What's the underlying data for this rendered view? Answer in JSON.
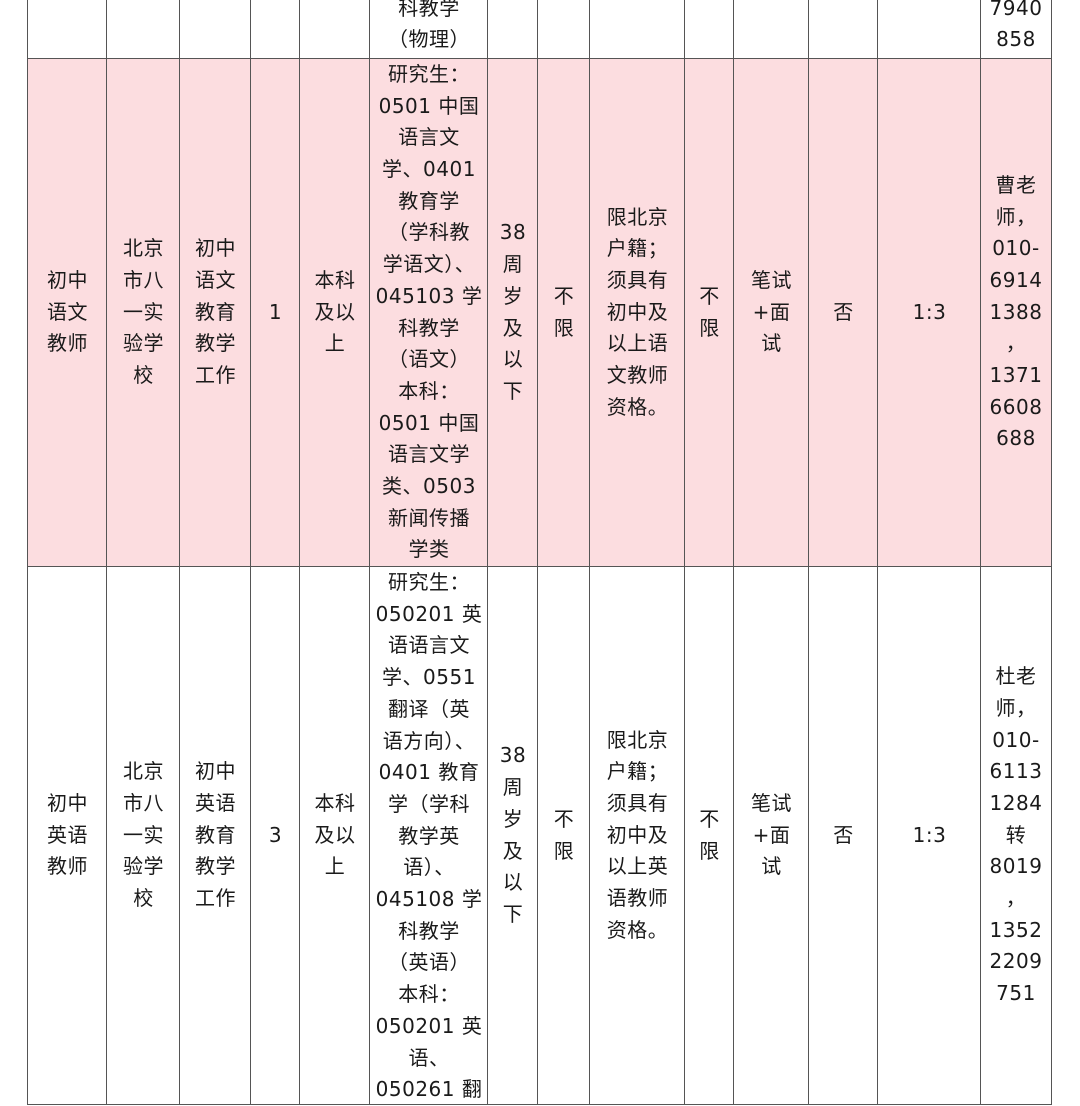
{
  "rows": [
    {
      "highlight": false,
      "cells": [
        "",
        "",
        "",
        "",
        "",
        "科教学\n（物理）",
        "",
        "",
        "",
        "",
        "",
        "",
        "",
        "7940\n858"
      ]
    },
    {
      "highlight": true,
      "cells": [
        "初中\n语文\n教师",
        "北京\n市八\n一实\n验学\n校",
        "初中\n语文\n教育\n教学\n工作",
        "1",
        "本科\n及以\n上",
        "研究生：\n0501 中国\n语言文\n学、0401\n教育学\n（学科教\n学语文）、\n045103 学\n科教学\n（语文）\n本科：\n0501 中国\n语言文学\n类、0503\n新闻传播\n学类",
        "38\n周\n岁\n及\n以\n下",
        "不\n限",
        "限北京\n户籍；\n须具有\n初中及\n以上语\n文教师\n资格。",
        "不\n限",
        "笔试\n+面\n试",
        "否",
        "1:3",
        "曹老\n师，\n010-\n6914\n1388\n，\n1371\n6608\n688"
      ]
    },
    {
      "highlight": false,
      "cells": [
        "初中\n英语\n教师",
        "北京\n市八\n一实\n验学\n校",
        "初中\n英语\n教育\n教学\n工作",
        "3",
        "本科\n及以\n上",
        "研究生：\n050201 英\n语语言文\n学、0551\n翻译（英\n语方向）、\n0401 教育\n学（学科\n教学英\n语）、\n045108 学\n科教学\n（英语）\n本科：\n050201 英\n语、\n050261 翻",
        "38\n周\n岁\n及\n以\n下",
        "不\n限",
        "限北京\n户籍；\n须具有\n初中及\n以上英\n语教师\n资格。",
        "不\n限",
        "笔试\n+面\n试",
        "否",
        "1:3",
        "杜老\n师，\n010-\n6113\n1284\n转\n8019\n，\n1352\n2209\n751"
      ]
    }
  ]
}
